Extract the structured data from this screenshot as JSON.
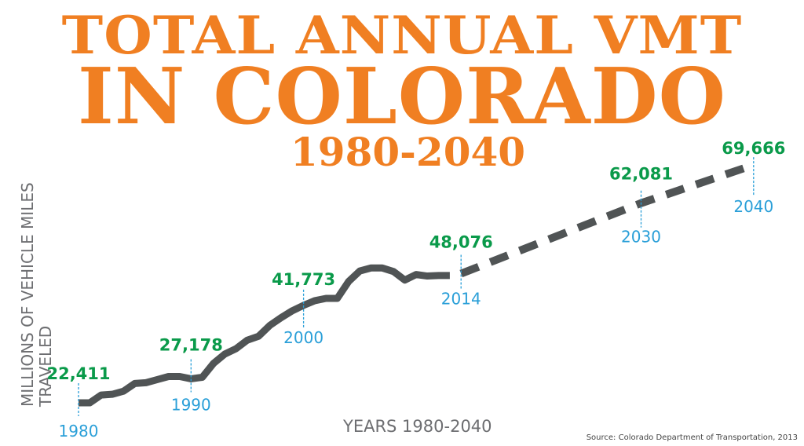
{
  "title": {
    "line1": "TOTAL ANNUAL VMT",
    "line2": "IN COLORADO",
    "line3": "1980-2040"
  },
  "source": "Source: Colorado Department of Transportation, 2013",
  "chart_data": {
    "type": "line",
    "title": "TOTAL ANNUAL VMT IN COLORADO 1980-2040",
    "xlabel": "YEARS 1980-2040",
    "ylabel": "MILLIONS OF VEHICLE MILES TRAVELED",
    "xlim": [
      1980,
      2040
    ],
    "grid": false,
    "colors": {
      "line": "#505455",
      "value_label": "#0a9a4a",
      "year_label": "#2a9fd8",
      "title": "#f07f22"
    },
    "series": [
      {
        "style": "solid",
        "x": [
          1980,
          1981,
          1982,
          1983,
          1984,
          1985,
          1986,
          1987,
          1988,
          1989,
          1990,
          1991,
          1992,
          1993,
          1994,
          1995,
          1996,
          1997,
          1998,
          1999,
          2000,
          2001,
          2002,
          2003,
          2004,
          2005,
          2006,
          2007,
          2008,
          2009,
          2010,
          2011,
          2012,
          2013
        ],
        "y": [
          22411,
          22411,
          23948,
          24102,
          24717,
          26254,
          26407,
          27022,
          27637,
          27637,
          27178,
          27483,
          30250,
          32094,
          33170,
          34861,
          35630,
          37781,
          39318,
          40702,
          41773,
          42698,
          43160,
          43160,
          46500,
          48600,
          49200,
          49200,
          48500,
          46800,
          47900,
          47600,
          47700,
          47700
        ]
      },
      {
        "style": "dashed",
        "x": [
          2014,
          2030,
          2040
        ],
        "y": [
          48076,
          62081,
          69666
        ]
      }
    ],
    "annotations": [
      {
        "year": "1980",
        "value": "22,411"
      },
      {
        "year": "1990",
        "value": "27,178"
      },
      {
        "year": "2000",
        "value": "41,773"
      },
      {
        "year": "2014",
        "value": "48,076"
      },
      {
        "year": "2030",
        "value": "62,081"
      },
      {
        "year": "2040",
        "value": "69,666"
      }
    ]
  }
}
